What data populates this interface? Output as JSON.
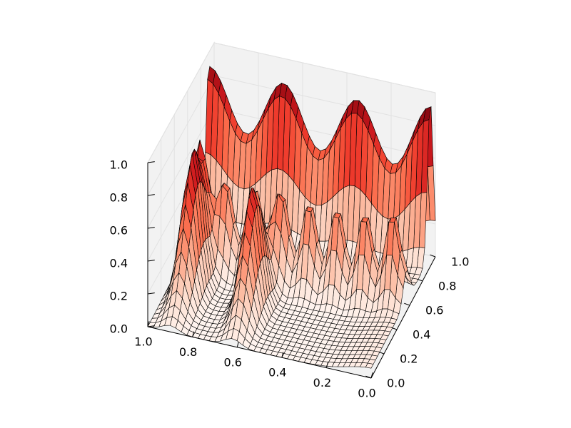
{
  "chart_data": {
    "type": "surface",
    "title": "",
    "xlabel": "",
    "ylabel": "",
    "zlabel": "",
    "colormap": "Reds",
    "edge_color": "#000000",
    "pane_color": "#f2f2f2",
    "grid": true,
    "x_range": [
      0,
      1
    ],
    "y_range": [
      0,
      1
    ],
    "z_range": [
      0,
      1
    ],
    "x_ticks": [
      "0.0",
      "0.2",
      "0.4",
      "0.6",
      "0.8",
      "1.0"
    ],
    "y_ticks": [
      "0.0",
      "0.2",
      "0.4",
      "0.6",
      "0.8",
      "1.0"
    ],
    "z_ticks": [
      "0.0",
      "0.2",
      "0.4",
      "0.6",
      "0.8",
      "1.0"
    ]
  }
}
